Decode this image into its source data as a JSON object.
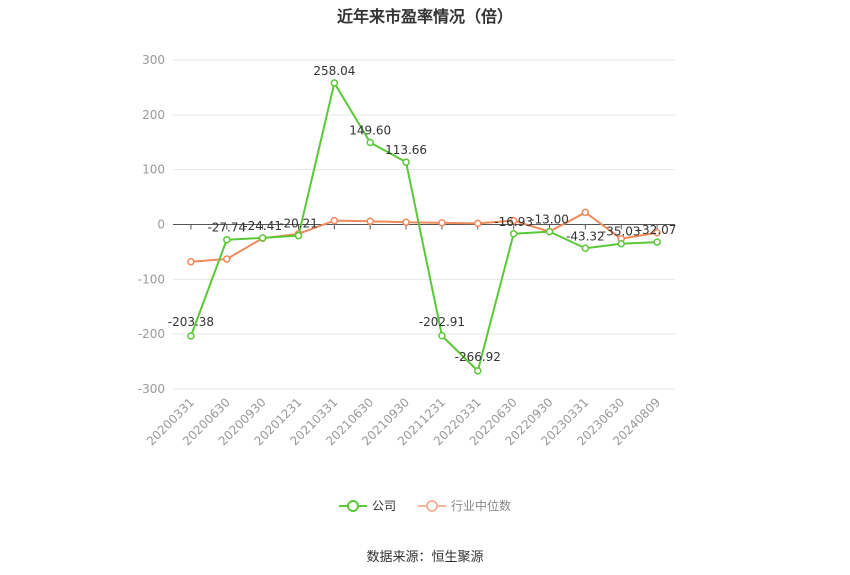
{
  "chart_data": {
    "type": "line",
    "title": "近年来市盈率情况（倍）",
    "categories": [
      "20200331",
      "20200630",
      "20200930",
      "20201231",
      "20210331",
      "20210630",
      "20210930",
      "20211231",
      "20220331",
      "20220630",
      "20220930",
      "20230331",
      "20230630",
      "20240809"
    ],
    "series": [
      {
        "name": "公司",
        "color": "#5ac837",
        "values": [
          -203.38,
          -27.74,
          -24.41,
          -20.21,
          258.04,
          149.6,
          113.66,
          -202.91,
          -266.92,
          -16.93,
          -13.0,
          -43.32,
          -35.03,
          -32.07
        ],
        "labels": [
          "-203.38",
          "-27.74",
          "-24.41",
          "-20.21",
          "258.04",
          "149.60",
          "113.66",
          "-202.91",
          "-266.92",
          "-16.93",
          "-13.00",
          "-43.32",
          "-35.03",
          "-32.07"
        ]
      },
      {
        "name": "行业中位数",
        "color": "#f08a5d",
        "values": [
          -68,
          -63,
          -25,
          -17,
          7,
          6,
          4,
          3,
          2,
          7,
          -13,
          22,
          -26,
          -15
        ]
      }
    ],
    "ylim": [
      -300,
      300
    ],
    "yticks": [
      "300",
      "200",
      "100",
      "0",
      "-100",
      "-200",
      "-300"
    ],
    "grid": true,
    "legend_position": "bottom"
  },
  "source": "数据来源：恒生聚源"
}
